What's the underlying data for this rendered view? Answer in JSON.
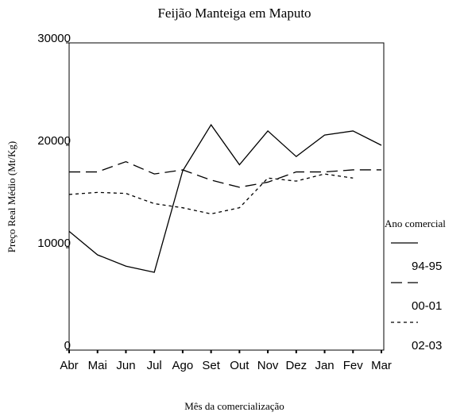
{
  "chart_data": {
    "type": "line",
    "title": "Feijão Manteiga em Maputo",
    "x_label": "Mês da comercialização",
    "y_label": "Preço Real Médio (Mt/Kg)",
    "legend_title": "Ano comercial",
    "categories": [
      "Abr",
      "Mai",
      "Jun",
      "Jul",
      "Ago",
      "Set",
      "Out",
      "Nov",
      "Dez",
      "Jan",
      "Fev",
      "Mar"
    ],
    "series": [
      {
        "name": "94-95",
        "color": "#000000",
        "dash": "solid",
        "values": [
          11600,
          9300,
          8200,
          7600,
          17500,
          22000,
          18100,
          21400,
          18900,
          21000,
          21400,
          20000
        ]
      },
      {
        "name": "00-01",
        "color": "#000000",
        "dash": "long",
        "values": [
          17400,
          17400,
          18400,
          17200,
          17600,
          16600,
          15900,
          16400,
          17400,
          17400,
          17600,
          17600
        ]
      },
      {
        "name": "02-03",
        "color": "#000000",
        "dash": "short",
        "values": [
          15200,
          15400,
          15300,
          14300,
          13900,
          13300,
          13900,
          16800,
          16500,
          17200,
          16800,
          null
        ]
      }
    ],
    "ylim": [
      0,
      30000
    ],
    "yticks": [
      0,
      10000,
      20000,
      30000
    ],
    "grid": false,
    "legend": "right"
  }
}
